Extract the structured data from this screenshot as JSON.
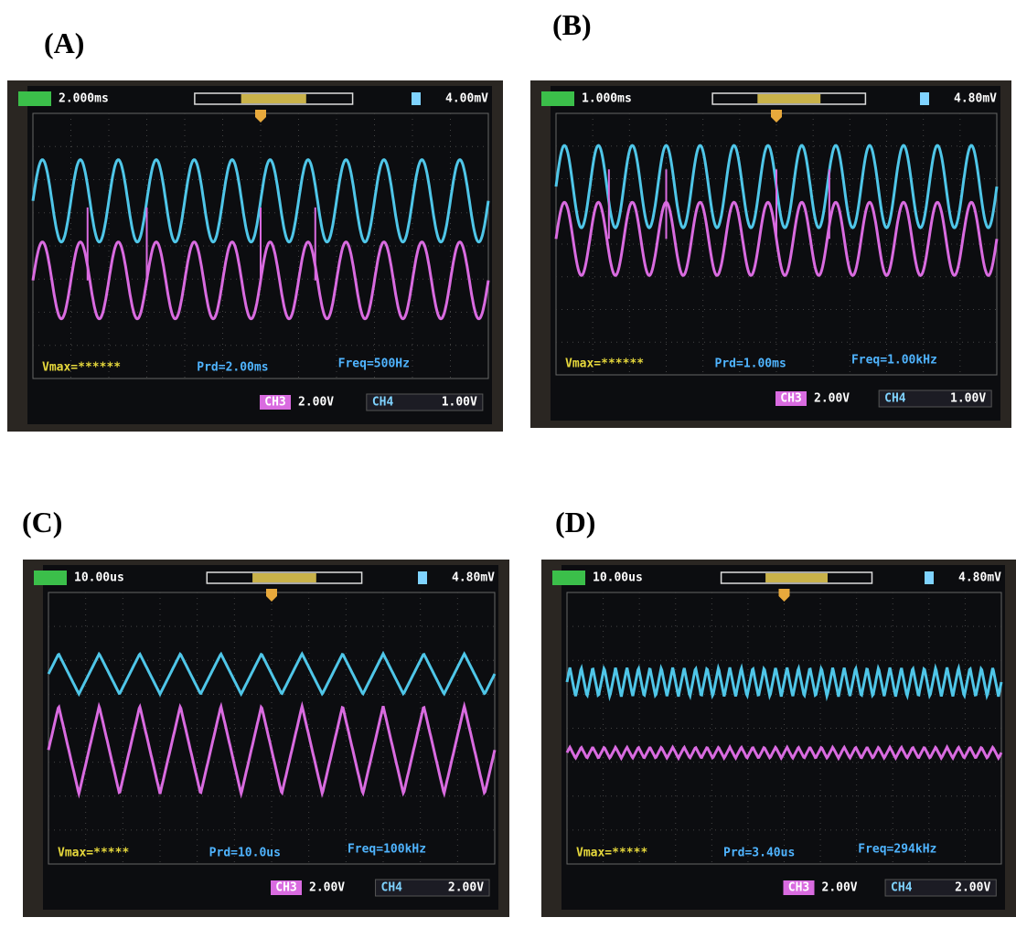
{
  "panels": [
    {
      "label": "(A)",
      "timebase": "2.000ms",
      "trigger_level": "4.00mV",
      "vmax": "Vmax=******",
      "period": "Prd=2.00ms",
      "frequency": "Freq=500Hz",
      "ch3": "CH3",
      "ch3_scale": "2.00V",
      "ch4": "CH4",
      "ch4_scale": "1.00V"
    },
    {
      "label": "(B)",
      "timebase": "1.000ms",
      "trigger_level": "4.80mV",
      "vmax": "Vmax=******",
      "period": "Prd=1.00ms",
      "frequency": "Freq=1.00kHz",
      "ch3": "CH3",
      "ch3_scale": "2.00V",
      "ch4": "CH4",
      "ch4_scale": "1.00V"
    },
    {
      "label": "(C)",
      "timebase": "10.00us",
      "trigger_level": "4.80mV",
      "vmax": "Vmax=*****",
      "period": "Prd=10.0us",
      "frequency": "Freq=100kHz",
      "ch3": "CH3",
      "ch3_scale": "2.00V",
      "ch4": "CH4",
      "ch4_scale": "2.00V"
    },
    {
      "label": "(D)",
      "timebase": "10.00us",
      "trigger_level": "4.80mV",
      "vmax": "Vmax=*****",
      "period": "Prd=3.40us",
      "frequency": "Freq=294kHz",
      "ch3": "CH3",
      "ch3_scale": "2.00V",
      "ch4": "CH4",
      "ch4_scale": "2.00V"
    }
  ]
}
